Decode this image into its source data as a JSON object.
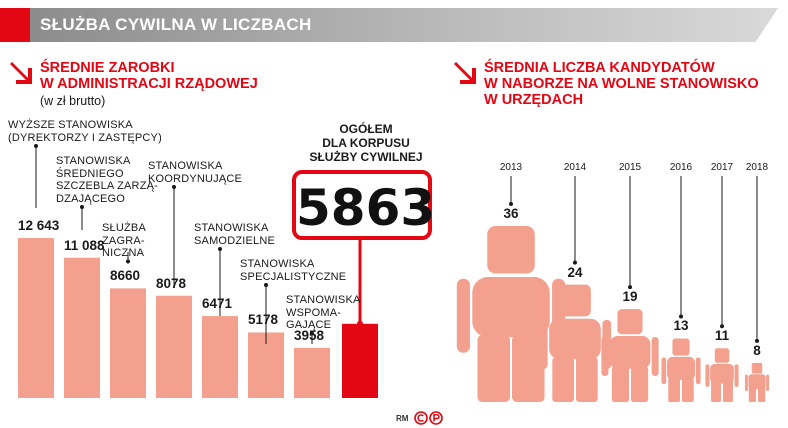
{
  "header": {
    "title": "SŁUŻBA CYWILNA W LICZBACH"
  },
  "left": {
    "title": "ŚREDNIE ZAROBKI\nW ADMINISTRACJI RZĄDOWEJ",
    "note": "(w zł brutto)"
  },
  "total": {
    "heading": "OGÓŁEM\nDLA KORPUSU\nSŁUŻBY CYWILNEJ",
    "value": "5863"
  },
  "right": {
    "title": "ŚREDNIA LICZBA KANDYDATÓW\nW NABORZE NA WOLNE STANOWISKO\nW URZĘDACH"
  },
  "credit": "RM",
  "colors": {
    "accent": "#e30613",
    "salmon": "#f4a08e",
    "dark": "#1a1a1a"
  },
  "chart_data": [
    {
      "type": "bar",
      "title": "ŚREDNIE ZAROBKI W ADMINISTRACJI RZĄDOWEJ",
      "subtitle": "(w zł brutto)",
      "categories": [
        "WYŻSZE STANOWISKA\n(DYREKTORZY I ZASTĘPCY)",
        "STANOWISKA\nŚREDNIEGO\nSZCZEBLA ZARZĄ-\nDZAJĄCEGO",
        "SŁUŻBA\nZAGRA-\nNICZNA",
        "STANOWISKA\nKOORDYNUJĄCE",
        "STANOWISKA\nSAMODZIELNE",
        "STANOWISKA\nSPECJALISTYCZNE",
        "STANOWISKA\nWSPOMA-\nGAJĄCE",
        "OGÓŁEM DLA KORPUSU SŁUŻBY CYWILNEJ"
      ],
      "values": [
        12643,
        11088,
        8660,
        8078,
        6471,
        5178,
        3958,
        5863
      ],
      "value_labels": [
        "12 643",
        "11 088",
        "8660",
        "8078",
        "6471",
        "5178",
        "3958",
        ""
      ],
      "highlight_index": 7,
      "ylim": [
        0,
        14000
      ]
    },
    {
      "type": "bar",
      "title": "ŚREDNIA LICZBA KANDYDATÓW W NABORZE NA WOLNE STANOWISKO W URZĘDACH",
      "categories": [
        "2013",
        "2014",
        "2015",
        "2016",
        "2017",
        "2018"
      ],
      "values": [
        36,
        24,
        19,
        13,
        11,
        8
      ],
      "value_labels": [
        "36",
        "24",
        "19",
        "13",
        "11",
        "8"
      ],
      "glyph": "person"
    }
  ]
}
